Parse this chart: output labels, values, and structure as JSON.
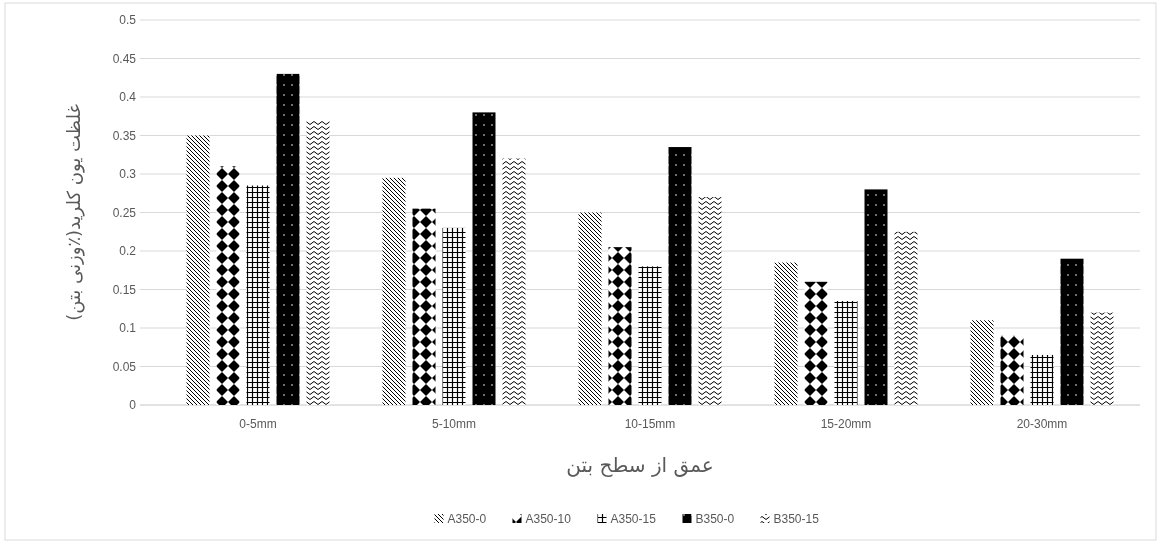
{
  "chart_data": {
    "type": "bar",
    "xlabel": "عمق از سطح بتن",
    "ylabel": "غلظت یون کلرید(٪وزنی بتن)",
    "categories": [
      "0-5mm",
      "5-10mm",
      "10-15mm",
      "15-20mm",
      "20-30mm"
    ],
    "series": [
      {
        "name": "A350-0",
        "color": "#000000",
        "values": [
          0.35,
          0.295,
          0.25,
          0.185,
          0.11
        ]
      },
      {
        "name": "A350-10",
        "color": "#000000",
        "values": [
          0.31,
          0.255,
          0.205,
          0.16,
          0.09
        ]
      },
      {
        "name": "A350-15",
        "color": "#000000",
        "values": [
          0.285,
          0.23,
          0.18,
          0.135,
          0.065
        ]
      },
      {
        "name": "B350-0",
        "color": "#000000",
        "values": [
          0.43,
          0.38,
          0.335,
          0.28,
          0.19
        ]
      },
      {
        "name": "B350-15",
        "color": "#000000",
        "values": [
          0.37,
          0.32,
          0.27,
          0.225,
          0.12
        ]
      }
    ],
    "ylim": [
      0,
      0.5
    ],
    "yticks": [
      0,
      0.05,
      0.1,
      0.15,
      0.2,
      0.25,
      0.3,
      0.35,
      0.4,
      0.45,
      0.5
    ],
    "grid": "y",
    "legend": "bottom"
  }
}
